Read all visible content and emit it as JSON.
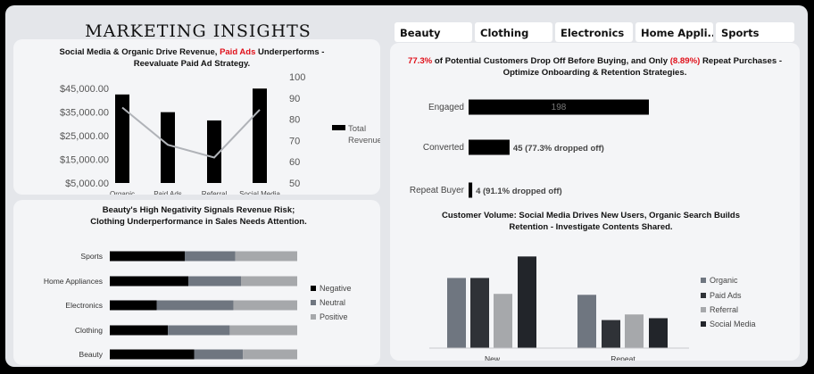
{
  "header": {
    "title": "MARKETING INSIGHTS"
  },
  "tabs": [
    "Beauty",
    "Clothing",
    "Electronics",
    "Home Appli...",
    "Sports"
  ],
  "colors": {
    "bar_dark": "#000000",
    "line": "#b0b3b8",
    "highlight": "#e0101a",
    "neutral": "#6f7680",
    "positive": "#a6a8ab"
  },
  "revenue_chart": {
    "title_pre": "Social Media & Organic Drive Revenue, ",
    "title_highlight": "Paid Ads",
    "title_post": " Underperforms - Reevaluate Paid Ad Strategy.",
    "legend": "Total Revenue",
    "y_ticks": [
      "$45,000.00",
      "$35,000.00",
      "$25,000.00",
      "$15,000.00",
      "$5,000.00"
    ],
    "y2_ticks": [
      "100",
      "90",
      "80",
      "70",
      "60",
      "50"
    ]
  },
  "funnel_chart": {
    "pct1": "77.3%",
    "text1": " of Potential Customers Drop Off Before Buying, and Only ",
    "pct2": "(8.89%)",
    "text2": " Repeat Purchases - Optimize Onboarding & Retention Strategies."
  },
  "sentiment_chart": {
    "title": "Beauty's High Negativity Signals Revenue Risk; Clothing Underperformance in Sales Needs Attention."
  },
  "customer_chart": {
    "title": "Customer Volume: Social Media Drives New Users, Organic Search Builds Retention - Investigate Contents Shared."
  },
  "chart_data": [
    {
      "type": "bar",
      "title": "Social Media & Organic Drive Revenue, Paid Ads Underperforms - Reevaluate Paid Ad Strategy.",
      "categories": [
        "Organic",
        "Paid Ads",
        "Referral",
        "Social Media"
      ],
      "series": [
        {
          "name": "Total Revenue",
          "values": [
            42500,
            35000,
            31500,
            45000
          ]
        },
        {
          "values": [
            85.5,
            68,
            62,
            84.5
          ],
          "axis": "secondary",
          "kind": "line"
        }
      ],
      "ylim": [
        5000,
        50000
      ],
      "y2lim": [
        50,
        100
      ],
      "legend": "right"
    },
    {
      "type": "bar",
      "orientation": "horizontal",
      "categories": [
        "Engaged",
        "Converted",
        "Repeat Buyer"
      ],
      "values": [
        198,
        45,
        4
      ],
      "labels": [
        "198",
        "45 (77.3% dropped off)",
        "4 (91.1% dropped off)"
      ]
    },
    {
      "type": "bar",
      "stacked": true,
      "normalized": true,
      "orientation": "horizontal",
      "title": "Beauty's High Negativity Signals Revenue Risk; Clothing Underperformance in Sales Needs Attention.",
      "categories": [
        "Sports",
        "Home Appliances",
        "Electronics",
        "Clothing",
        "Beauty"
      ],
      "series": [
        {
          "name": "Negative",
          "values": [
            0.4,
            0.42,
            0.25,
            0.31,
            0.45
          ]
        },
        {
          "name": "Neutral",
          "values": [
            0.27,
            0.28,
            0.41,
            0.33,
            0.26
          ]
        },
        {
          "name": "Positive",
          "values": [
            0.33,
            0.3,
            0.34,
            0.36,
            0.29
          ]
        }
      ],
      "legend": "right"
    },
    {
      "type": "bar",
      "title": "Customer Volume: Social Media Drives New Users, Organic Search Builds Retention - Investigate Contents Shared.",
      "categories": [
        "New",
        "Repeat"
      ],
      "series": [
        {
          "name": "Organic",
          "values": [
            75,
            57
          ]
        },
        {
          "name": "Paid Ads",
          "values": [
            75,
            30
          ]
        },
        {
          "name": "Referral",
          "values": [
            58,
            36
          ]
        },
        {
          "name": "Social Media",
          "values": [
            98,
            32
          ]
        }
      ],
      "ylim": [
        0,
        105
      ],
      "legend": "right"
    }
  ]
}
